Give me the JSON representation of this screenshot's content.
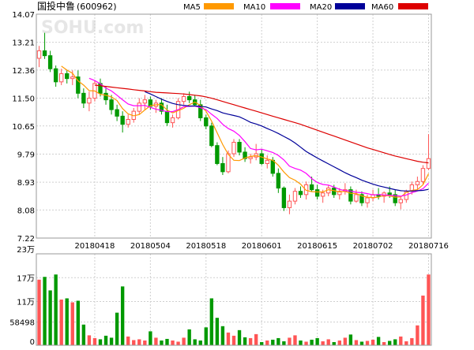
{
  "header": {
    "title": "国投中鲁",
    "code": "(600962)",
    "watermark": "SOHU.com",
    "ma_legend": [
      {
        "label": "MA5",
        "color": "#ff9900"
      },
      {
        "label": "MA10",
        "color": "#ff00ff"
      },
      {
        "label": "MA20",
        "color": "#000099"
      },
      {
        "label": "MA60",
        "color": "#dd0000"
      }
    ]
  },
  "colors": {
    "up": "#ff5555",
    "down": "#009900",
    "grid": "#cfcfcf",
    "frame": "#999999"
  },
  "chart_data": [
    {
      "type": "candlestick",
      "ylim": [
        7.22,
        14.07
      ],
      "y_ticks": [
        "14.07",
        "13.21",
        "12.36",
        "11.50",
        "10.65",
        "9.79",
        "8.93",
        "8.08",
        "7.22"
      ],
      "x_tick_labels": [
        {
          "label": "20180418",
          "index": 10
        },
        {
          "label": "20180504",
          "index": 20
        },
        {
          "label": "20180518",
          "index": 30
        },
        {
          "label": "20180601",
          "index": 40
        },
        {
          "label": "20180615",
          "index": 50
        },
        {
          "label": "20180702",
          "index": 60
        },
        {
          "label": "20180716",
          "index": 70
        }
      ],
      "candles": [
        [
          12.72,
          13.1,
          12.45,
          12.95
        ],
        [
          12.95,
          13.5,
          12.7,
          12.8
        ],
        [
          12.8,
          12.95,
          12.3,
          12.4
        ],
        [
          12.4,
          12.5,
          11.85,
          12.0
        ],
        [
          12.0,
          12.4,
          11.9,
          12.25
        ],
        [
          12.25,
          12.35,
          11.95,
          12.1
        ],
        [
          12.1,
          12.35,
          11.9,
          12.15
        ],
        [
          12.15,
          12.35,
          11.5,
          11.65
        ],
        [
          11.65,
          11.8,
          11.2,
          11.35
        ],
        [
          11.35,
          11.7,
          11.1,
          11.5
        ],
        [
          11.5,
          12.05,
          11.4,
          11.95
        ],
        [
          11.95,
          12.1,
          11.55,
          11.65
        ],
        [
          11.65,
          11.85,
          11.3,
          11.45
        ],
        [
          11.45,
          11.6,
          11.0,
          11.15
        ],
        [
          11.15,
          11.3,
          10.8,
          10.95
        ],
        [
          10.95,
          11.1,
          10.45,
          10.7
        ],
        [
          10.7,
          11.0,
          10.6,
          10.85
        ],
        [
          10.85,
          11.2,
          10.75,
          11.1
        ],
        [
          11.1,
          11.5,
          11.0,
          11.35
        ],
        [
          11.35,
          11.6,
          11.15,
          11.45
        ],
        [
          11.45,
          11.55,
          11.15,
          11.25
        ],
        [
          11.25,
          11.45,
          11.05,
          11.35
        ],
        [
          11.35,
          11.5,
          11.0,
          11.1
        ],
        [
          11.1,
          11.3,
          10.65,
          10.75
        ],
        [
          10.75,
          11.0,
          10.6,
          10.9
        ],
        [
          10.9,
          11.5,
          10.85,
          11.4
        ],
        [
          11.4,
          11.65,
          11.3,
          11.55
        ],
        [
          11.55,
          11.7,
          11.35,
          11.45
        ],
        [
          11.45,
          11.6,
          11.25,
          11.3
        ],
        [
          11.3,
          11.45,
          10.8,
          10.9
        ],
        [
          10.9,
          11.0,
          10.55,
          10.65
        ],
        [
          10.65,
          10.75,
          10.0,
          10.05
        ],
        [
          10.05,
          10.15,
          9.45,
          9.5
        ],
        [
          9.5,
          9.7,
          9.15,
          9.25
        ],
        [
          9.25,
          9.9,
          9.2,
          9.8
        ],
        [
          9.8,
          10.25,
          9.7,
          10.15
        ],
        [
          10.15,
          10.25,
          9.75,
          9.85
        ],
        [
          9.85,
          10.0,
          9.55,
          9.65
        ],
        [
          9.65,
          9.8,
          9.5,
          9.7
        ],
        [
          9.7,
          10.1,
          9.6,
          9.8
        ],
        [
          9.8,
          9.95,
          9.45,
          9.5
        ],
        [
          9.5,
          9.75,
          9.35,
          9.6
        ],
        [
          9.6,
          9.7,
          9.1,
          9.2
        ],
        [
          9.2,
          9.35,
          8.6,
          8.75
        ],
        [
          8.75,
          8.8,
          8.05,
          8.15
        ],
        [
          8.15,
          8.55,
          7.95,
          8.35
        ],
        [
          8.35,
          8.75,
          8.25,
          8.65
        ],
        [
          8.65,
          8.8,
          8.45,
          8.55
        ],
        [
          8.55,
          8.95,
          8.4,
          8.85
        ],
        [
          8.85,
          9.1,
          8.65,
          8.7
        ],
        [
          8.7,
          8.85,
          8.4,
          8.5
        ],
        [
          8.5,
          8.7,
          8.3,
          8.6
        ],
        [
          8.6,
          8.85,
          8.5,
          8.75
        ],
        [
          8.75,
          8.85,
          8.45,
          8.55
        ],
        [
          8.55,
          8.75,
          8.4,
          8.65
        ],
        [
          8.65,
          8.9,
          8.55,
          8.7
        ],
        [
          8.7,
          8.8,
          8.25,
          8.35
        ],
        [
          8.35,
          8.7,
          8.3,
          8.55
        ],
        [
          8.55,
          8.65,
          8.2,
          8.3
        ],
        [
          8.3,
          8.55,
          8.15,
          8.45
        ],
        [
          8.45,
          8.7,
          8.35,
          8.55
        ],
        [
          8.55,
          8.75,
          8.4,
          8.5
        ],
        [
          8.5,
          8.65,
          8.3,
          8.6
        ],
        [
          8.6,
          8.8,
          8.45,
          8.55
        ],
        [
          8.55,
          8.7,
          8.2,
          8.3
        ],
        [
          8.3,
          8.5,
          8.1,
          8.4
        ],
        [
          8.4,
          8.7,
          8.3,
          8.65
        ],
        [
          8.65,
          8.95,
          8.55,
          8.85
        ],
        [
          8.85,
          9.1,
          8.7,
          8.95
        ],
        [
          8.95,
          9.45,
          8.85,
          9.35
        ],
        [
          9.35,
          10.4,
          9.3,
          9.65
        ]
      ],
      "moving_averages": {
        "MA5": [
          null,
          null,
          null,
          null,
          12.48,
          12.36,
          12.26,
          12.03,
          11.9,
          11.73,
          11.72,
          11.62,
          11.59,
          11.54,
          11.43,
          11.18,
          11.02,
          10.96,
          11.0,
          11.14,
          11.27,
          11.3,
          11.3,
          11.14,
          11.05,
          11.12,
          11.19,
          11.3,
          11.38,
          11.28,
          11.1,
          10.8,
          10.44,
          10.08,
          9.78,
          9.6,
          9.59,
          9.67,
          9.72,
          9.74,
          9.7,
          9.64,
          9.6,
          9.45,
          9.24,
          9.07,
          8.99,
          8.87,
          8.68,
          8.64,
          8.63,
          8.63,
          8.7,
          8.67,
          8.63,
          8.65,
          8.59,
          8.58,
          8.51,
          8.47,
          8.46,
          8.47,
          8.53,
          8.51,
          8.47,
          8.48,
          8.62,
          8.68,
          8.7,
          8.85,
          9.19
        ],
        "MA10": [
          null,
          null,
          null,
          null,
          null,
          null,
          null,
          null,
          null,
          12.11,
          12.04,
          11.94,
          11.81,
          11.72,
          11.59,
          11.45,
          11.32,
          11.27,
          11.27,
          11.28,
          11.22,
          11.16,
          11.13,
          11.09,
          11.09,
          11.15,
          11.24,
          11.25,
          11.26,
          11.21,
          11.15,
          11.01,
          10.88,
          10.7,
          10.57,
          10.49,
          10.36,
          10.17,
          9.96,
          9.92,
          9.94,
          9.89,
          9.84,
          9.75,
          9.61,
          9.42,
          9.35,
          9.3,
          9.2,
          9.04,
          8.92,
          8.86,
          8.84,
          8.78,
          8.71,
          8.67,
          8.66,
          8.62,
          8.61,
          8.58,
          8.54,
          8.55,
          8.54,
          8.53,
          8.52,
          8.5,
          8.54,
          8.61,
          8.66,
          8.73,
          8.9
        ],
        "MA20": [
          null,
          null,
          null,
          null,
          null,
          null,
          null,
          null,
          null,
          null,
          null,
          null,
          null,
          null,
          null,
          null,
          null,
          null,
          null,
          11.7,
          11.63,
          11.55,
          11.47,
          11.4,
          11.34,
          11.3,
          11.28,
          11.26,
          11.26,
          11.25,
          11.23,
          11.17,
          11.12,
          11.05,
          11.01,
          10.97,
          10.93,
          10.85,
          10.76,
          10.71,
          10.65,
          10.57,
          10.5,
          10.42,
          10.33,
          10.24,
          10.13,
          10.0,
          9.87,
          9.77,
          9.67,
          9.58,
          9.49,
          9.4,
          9.31,
          9.22,
          9.14,
          9.07,
          8.99,
          8.93,
          8.87,
          8.82,
          8.78,
          8.74,
          8.7,
          8.67,
          8.66,
          8.66,
          8.67,
          8.68,
          8.71
        ],
        "MA60": [
          null,
          null,
          null,
          null,
          null,
          null,
          null,
          null,
          null,
          null,
          11.9,
          11.88,
          11.86,
          11.84,
          11.82,
          11.8,
          11.78,
          11.76,
          11.74,
          11.72,
          11.7,
          11.68,
          11.67,
          11.66,
          11.65,
          11.64,
          11.63,
          11.61,
          11.59,
          11.57,
          11.54,
          11.5,
          11.45,
          11.4,
          11.35,
          11.3,
          11.25,
          11.2,
          11.15,
          11.1,
          11.05,
          11.0,
          10.95,
          10.9,
          10.85,
          10.8,
          10.75,
          10.7,
          10.64,
          10.58,
          10.52,
          10.46,
          10.4,
          10.34,
          10.28,
          10.22,
          10.16,
          10.1,
          10.04,
          9.98,
          9.93,
          9.88,
          9.83,
          9.78,
          9.73,
          9.69,
          9.65,
          9.61,
          9.57,
          9.54,
          9.52
        ]
      }
    },
    {
      "type": "bar",
      "title": "volume",
      "y_unit_label": "23万",
      "ylim": [
        0,
        230000
      ],
      "y_ticks": [
        {
          "label": "23万",
          "value": 230000
        },
        {
          "label": "17万",
          "value": 170000
        },
        {
          "label": "11万",
          "value": 110000
        },
        {
          "label": "58498",
          "value": 58498
        },
        {
          "label": "0",
          "value": 0
        }
      ],
      "values": [
        165000,
        172000,
        138000,
        178000,
        115000,
        118000,
        108000,
        112000,
        52000,
        25000,
        18000,
        15000,
        24000,
        19000,
        82000,
        148000,
        22000,
        13000,
        15000,
        12000,
        35000,
        19000,
        12000,
        16000,
        12000,
        9000,
        19000,
        40000,
        15000,
        12000,
        45000,
        118000,
        69000,
        48000,
        32000,
        24000,
        38000,
        20000,
        18000,
        28000,
        8000,
        12000,
        14000,
        18000,
        10000,
        19000,
        25000,
        12000,
        9000,
        14000,
        18000,
        10000,
        15000,
        8000,
        12000,
        19000,
        27000,
        13000,
        9000,
        11000,
        14000,
        21000,
        8000,
        11000,
        15000,
        22000,
        10000,
        18000,
        50000,
        125000,
        178000
      ]
    }
  ]
}
